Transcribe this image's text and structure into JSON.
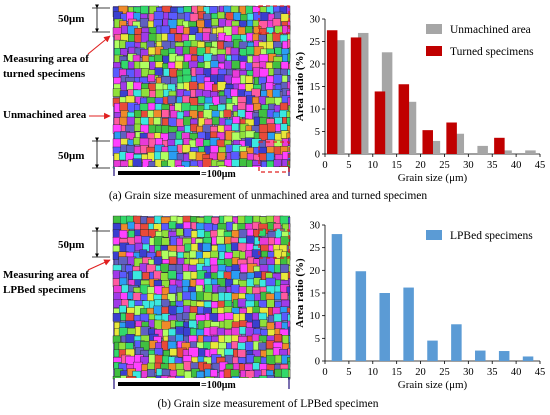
{
  "panel_a": {
    "caption": "(a) Grain size measurement of unmachined area and turned specimen",
    "micrograph": {
      "label_top_dim": "50μm",
      "label_bottom_dim": "50μm",
      "label_turned": [
        "Measuring area of",
        "turned specimens"
      ],
      "label_unmachined": "Unmachined area",
      "scale_bar": "=100μm"
    }
  },
  "panel_b": {
    "caption": "(b) Grain size measurement of LPBed specimen",
    "micrograph": {
      "label_top_dim": "50μm",
      "label_lpbed": [
        "Measuring area of",
        "LPBed specimens"
      ],
      "scale_bar": "=100μm"
    }
  },
  "colors": {
    "unmachined": "#a6a6a6",
    "turned": "#c00000",
    "lpbed": "#5b9bd5",
    "dashed_box": "#e02020",
    "arrow": "#e02020"
  },
  "chart_data": [
    {
      "type": "bar",
      "xlabel": "Grain size (μm)",
      "ylabel": "Area ratio (%)",
      "xlim": [
        0,
        45
      ],
      "ylim": [
        0,
        30
      ],
      "xticks": [
        0,
        5,
        10,
        15,
        20,
        25,
        30,
        35,
        40,
        45
      ],
      "yticks": [
        0,
        5,
        10,
        15,
        20,
        25,
        30
      ],
      "legend_position": "top-right",
      "grid": false,
      "series": [
        {
          "name": "Unmachined area",
          "x": [
            3,
            8,
            13,
            18,
            23,
            28,
            33,
            38,
            43
          ],
          "values": [
            25.3,
            26.9,
            22.6,
            11.6,
            2.9,
            4.5,
            1.8,
            0.8,
            0.8
          ]
        },
        {
          "name": "Turned specimens",
          "x": [
            1.5,
            6.5,
            11.5,
            16.5,
            21.5,
            26.5,
            31.5,
            36.5,
            41.5
          ],
          "values": [
            27.5,
            25.9,
            13.9,
            15.5,
            5.3,
            7.0,
            0,
            3.6,
            0
          ]
        }
      ]
    },
    {
      "type": "bar",
      "xlabel": "Grain size (μm)",
      "ylabel": "Area ratio (%)",
      "xlim": [
        0,
        45
      ],
      "ylim": [
        0,
        30
      ],
      "xticks": [
        0,
        5,
        10,
        15,
        20,
        25,
        30,
        35,
        40,
        45
      ],
      "yticks": [
        0,
        5,
        10,
        15,
        20,
        25,
        30
      ],
      "legend_position": "top-right",
      "grid": false,
      "series": [
        {
          "name": "LPBed specimens",
          "x": [
            2.5,
            7.5,
            12.5,
            17.5,
            22.5,
            27.5,
            32.5,
            37.5,
            42.5
          ],
          "values": [
            28.0,
            19.8,
            15.0,
            16.2,
            4.5,
            8.1,
            2.3,
            2.2,
            1.0
          ]
        }
      ]
    }
  ]
}
